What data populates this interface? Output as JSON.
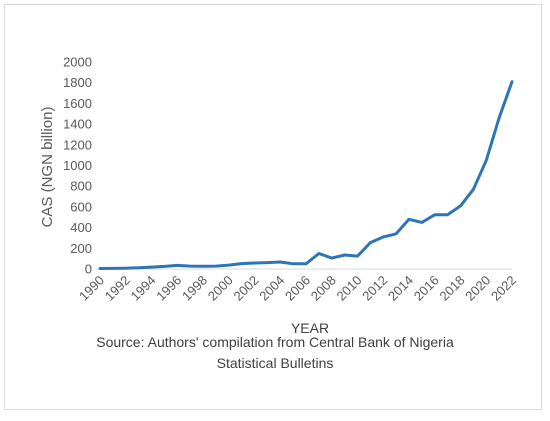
{
  "chart_data": {
    "type": "line",
    "title": "",
    "xlabel": "YEAR",
    "ylabel": "CAS (NGN billion)",
    "ylim": [
      0,
      2000
    ],
    "yticks": [
      0,
      200,
      400,
      600,
      800,
      1000,
      1200,
      1400,
      1600,
      1800,
      2000
    ],
    "xlim": [
      1990,
      2022
    ],
    "xticks": [
      1990,
      1992,
      1994,
      1996,
      1998,
      2000,
      2002,
      2004,
      2006,
      2008,
      2010,
      2012,
      2014,
      2016,
      2018,
      2020,
      2022
    ],
    "grid": false,
    "legend": "none",
    "series": [
      {
        "color": "#2e75b6",
        "x": [
          1990,
          1991,
          1992,
          1993,
          1994,
          1995,
          1996,
          1997,
          1998,
          1999,
          2000,
          2001,
          2002,
          2003,
          2004,
          2005,
          2006,
          2007,
          2008,
          2009,
          2010,
          2011,
          2012,
          2013,
          2014,
          2015,
          2016,
          2017,
          2018,
          2019,
          2020,
          2021,
          2022
        ],
        "y": [
          5,
          6,
          8,
          12,
          18,
          25,
          35,
          28,
          26,
          28,
          38,
          52,
          58,
          62,
          68,
          50,
          50,
          150,
          105,
          135,
          125,
          255,
          310,
          340,
          480,
          450,
          525,
          525,
          610,
          770,
          1050,
          1460,
          1810
        ]
      }
    ]
  },
  "source_line1": "Source: Authors' compilation from Central Bank of Nigeria",
  "source_line2": "Statistical Bulletins"
}
